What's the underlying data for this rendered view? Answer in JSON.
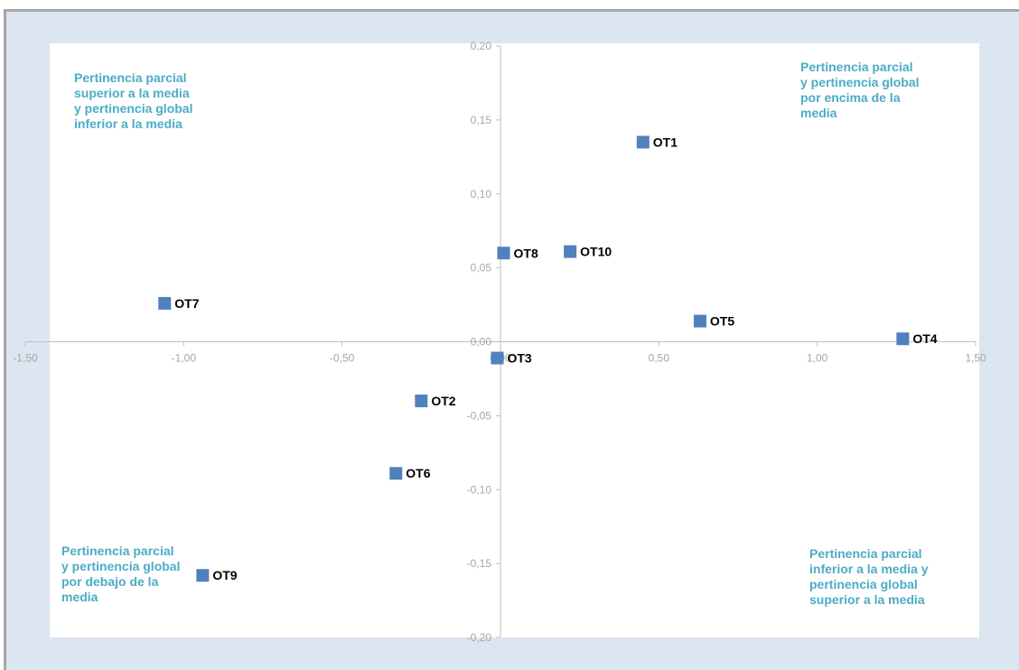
{
  "chart_data": {
    "type": "scatter",
    "title": "",
    "xlabel": "",
    "ylabel": "",
    "xlim": [
      -1.5,
      1.5
    ],
    "ylim": [
      -0.2,
      0.2
    ],
    "x_ticks": [
      "-1,50",
      "-1,00",
      "-0,50",
      "0,00",
      "0,50",
      "1,00",
      "1,50"
    ],
    "y_ticks": [
      "0,20",
      "0,15",
      "0,10",
      "0,05",
      "0,00",
      "-0,05",
      "-0,10",
      "-0,15",
      "-0,20"
    ],
    "grid": false,
    "marker_color": "#4f81bd",
    "points": [
      {
        "label": "OT1",
        "x": 0.45,
        "y": 0.135
      },
      {
        "label": "OT2",
        "x": -0.25,
        "y": -0.04
      },
      {
        "label": "OT3",
        "x": -0.01,
        "y": -0.011
      },
      {
        "label": "OT4",
        "x": 1.27,
        "y": 0.002
      },
      {
        "label": "OT5",
        "x": 0.63,
        "y": 0.014
      },
      {
        "label": "OT6",
        "x": -0.33,
        "y": -0.089
      },
      {
        "label": "OT7",
        "x": -1.06,
        "y": 0.026
      },
      {
        "label": "OT8",
        "x": 0.01,
        "y": 0.06
      },
      {
        "label": "OT9",
        "x": -0.94,
        "y": -0.158
      },
      {
        "label": "OT10",
        "x": 0.22,
        "y": 0.061
      }
    ],
    "annotations": {
      "top_left": "Pertinencia  parcial\nsuperior a la media\ny pertinencia  global\ninferior a la media",
      "top_right": "Pertinencia parcial\ny pertinencia global\npor encima de la\nmedia",
      "bottom_left": "Pertinencia parcial\ny pertinencia global\npor debajo de la\nmedia",
      "bottom_right": "Pertinencia  parcial\ninferior a la media y\npertinencia  global\nsuperior a la media"
    },
    "annotation_color": "#4bacc6"
  }
}
